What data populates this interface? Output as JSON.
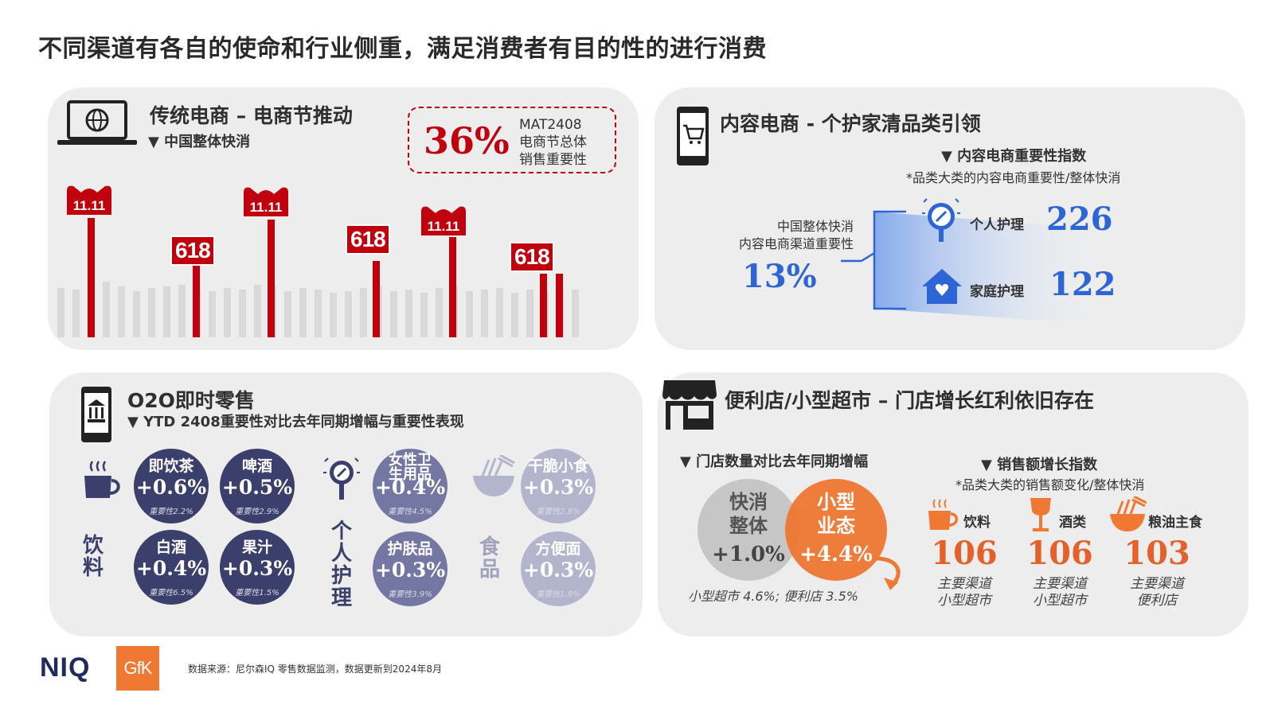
{
  "title": "不同渠道有各自的使命和行业侧重，满足消费者有目的性的进行消费",
  "ecom": {
    "title": "传统电商 – 电商节推动",
    "subtitle": "▼   中国整体快消",
    "pct": "36%",
    "mat_lines": [
      "MAT2408",
      "电商节总体",
      "销售重要性"
    ],
    "badge_618": "618",
    "badge_1111": "11.11"
  },
  "content": {
    "title": "内容电商 - 个护家清品类引领",
    "index_title": "▼ 内容电商重要性指数",
    "index_note": "*品类大类的内容电商重要性/整体快消",
    "overall_lines": [
      "中国整体快消",
      "内容电商渠道重要性"
    ],
    "overall_pct": "13%",
    "items": [
      {
        "label": "个人护理",
        "value": "226"
      },
      {
        "label": "家庭护理",
        "value": "122"
      }
    ]
  },
  "o2o": {
    "title": "O2O即时零售",
    "subtitle": "▼   YTD 2408重要性对比去年同期增幅与重要性表现",
    "groups": [
      {
        "label": "饮料",
        "items": [
          {
            "name": "即饮茶",
            "value": "+0.6%",
            "imp": "重要性2.2%"
          },
          {
            "name": "啤酒",
            "value": "+0.5%",
            "imp": "重要性2.9%"
          },
          {
            "name": "白酒",
            "value": "+0.4%",
            "imp": "重要性6.5%"
          },
          {
            "name": "果汁",
            "value": "+0.3%",
            "imp": "重要性1.5%"
          }
        ]
      },
      {
        "label": "个人护理",
        "items": [
          {
            "name": "女性卫生用品",
            "value": "+0.4%",
            "imp": "重要性4.5%"
          },
          {
            "name": "护肤品",
            "value": "+0.3%",
            "imp": "重要性3.9%"
          }
        ]
      },
      {
        "label": "食品",
        "items": [
          {
            "name": "干脆小食",
            "value": "+0.3%",
            "imp": "重要性2.8%"
          },
          {
            "name": "方便面",
            "value": "+0.3%",
            "imp": "重要性1.8%"
          }
        ]
      }
    ]
  },
  "store": {
    "title": "便利店/小型超市 – 门店增长红利依旧存在",
    "count_title": "▼ 门店数量对比去年同期增幅",
    "venn_left": {
      "name": "快消整体",
      "value": "+1.0%"
    },
    "venn_right": {
      "name": "小型业态",
      "value": "+4.4%"
    },
    "venn_note": "小型超市 4.6%;   便利店 3.5%",
    "growth_title": "▼    销售额增长指数",
    "growth_note": "*品类大类的销售额变化/整体快消",
    "categories": [
      {
        "name": "饮料",
        "value": "106",
        "ch1": "主要渠道",
        "ch2": "小型超市"
      },
      {
        "name": "酒类",
        "value": "106",
        "ch1": "主要渠道",
        "ch2": "小型超市"
      },
      {
        "name": "粮油主食",
        "value": "103",
        "ch1": "主要渠道",
        "ch2": "便利店"
      }
    ]
  },
  "footer": {
    "logo_niq": "NIQ",
    "logo_gfk": "GfK",
    "source": "数据来源：尼尔森IQ 零售数据监测，数据更新到2024年8月"
  },
  "colors": {
    "red": "#c0000c",
    "blue": "#2d64d6",
    "navy": "#3b3f6b",
    "orange": "#e4622a",
    "panel": "#ededed"
  }
}
